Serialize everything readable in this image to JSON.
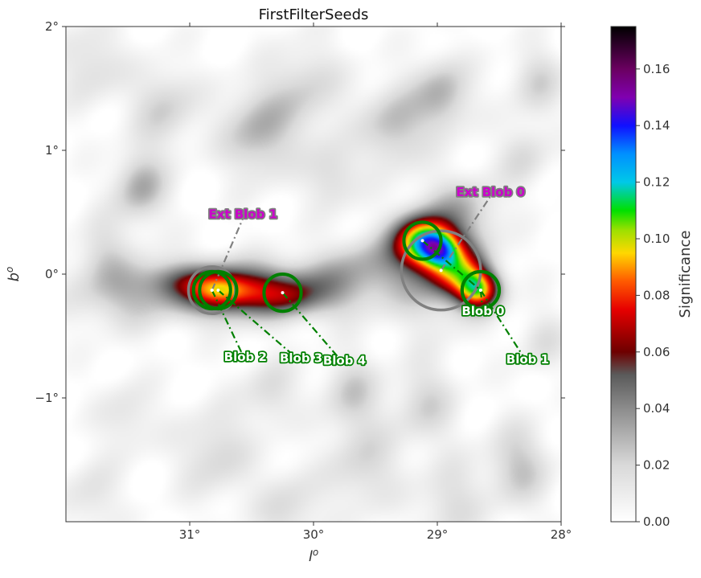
{
  "chart_data": {
    "type": "heatmap",
    "title": "FirstFilterSeeds",
    "xlabel": "l",
    "xlabel_superscript": "o",
    "ylabel": "b",
    "ylabel_superscript": "o",
    "xlim": [
      32.0,
      28.0
    ],
    "ylim": [
      -2.0,
      2.0
    ],
    "x_ticks": [
      {
        "value": 31,
        "label": "31°"
      },
      {
        "value": 30,
        "label": "30°"
      },
      {
        "value": 29,
        "label": "29°"
      },
      {
        "value": 28,
        "label": "28°"
      }
    ],
    "y_ticks": [
      {
        "value": 2,
        "label": "2°"
      },
      {
        "value": 1,
        "label": "1°"
      },
      {
        "value": 0,
        "label": "0°"
      },
      {
        "value": -1,
        "label": "−1°"
      }
    ],
    "colorbar": {
      "label": "Significance",
      "range": [
        0.0,
        0.175
      ],
      "ticks": [
        {
          "value": 0.0,
          "label": "0.00"
        },
        {
          "value": 0.02,
          "label": "0.02"
        },
        {
          "value": 0.04,
          "label": "0.04"
        },
        {
          "value": 0.06,
          "label": "0.06"
        },
        {
          "value": 0.08,
          "label": "0.08"
        },
        {
          "value": 0.1,
          "label": "0.10"
        },
        {
          "value": 0.12,
          "label": "0.12"
        },
        {
          "value": 0.14,
          "label": "0.14"
        },
        {
          "value": 0.16,
          "label": "0.16"
        }
      ],
      "stops": [
        {
          "value": 0.0,
          "color": "#ffffff"
        },
        {
          "value": 0.02,
          "color": "#d9d9d9"
        },
        {
          "value": 0.04,
          "color": "#8c8c8c"
        },
        {
          "value": 0.052,
          "color": "#5a5a5a"
        },
        {
          "value": 0.06,
          "color": "#6e0000"
        },
        {
          "value": 0.075,
          "color": "#e60000"
        },
        {
          "value": 0.085,
          "color": "#ff5a00"
        },
        {
          "value": 0.095,
          "color": "#ffd800"
        },
        {
          "value": 0.103,
          "color": "#9de000"
        },
        {
          "value": 0.11,
          "color": "#00e000"
        },
        {
          "value": 0.12,
          "color": "#00c8e8"
        },
        {
          "value": 0.13,
          "color": "#0090ff"
        },
        {
          "value": 0.14,
          "color": "#1010ff"
        },
        {
          "value": 0.15,
          "color": "#8000b0"
        },
        {
          "value": 0.16,
          "color": "#6a0060"
        },
        {
          "value": 0.175,
          "color": "#000000"
        }
      ]
    },
    "emission": [
      {
        "l": 30.8,
        "b": -0.13,
        "sl": 0.3,
        "sb": 0.16,
        "amp": 0.05
      },
      {
        "l": 30.75,
        "b": -0.13,
        "sl": 0.15,
        "sb": 0.1,
        "amp": 0.03
      },
      {
        "l": 31.1,
        "b": -0.05,
        "sl": 0.2,
        "sb": 0.1,
        "amp": 0.02
      },
      {
        "l": 30.45,
        "b": -0.15,
        "sl": 0.22,
        "sb": 0.13,
        "amp": 0.03
      },
      {
        "l": 30.0,
        "b": -0.12,
        "sl": 0.35,
        "sb": 0.16,
        "amp": 0.038
      },
      {
        "l": 30.15,
        "b": -0.2,
        "sl": 0.15,
        "sb": 0.1,
        "amp": 0.015
      },
      {
        "l": 31.55,
        "b": -0.15,
        "sl": 0.3,
        "sb": 0.2,
        "amp": 0.025
      },
      {
        "l": 29.12,
        "b": 0.27,
        "sl": 0.16,
        "sb": 0.14,
        "amp": 0.09
      },
      {
        "l": 28.98,
        "b": 0.2,
        "sl": 0.12,
        "sb": 0.1,
        "amp": 0.05
      },
      {
        "l": 28.66,
        "b": -0.13,
        "sl": 0.12,
        "sb": 0.11,
        "amp": 0.08
      },
      {
        "l": 28.83,
        "b": 0.02,
        "sl": 0.16,
        "sb": 0.14,
        "amp": 0.06
      },
      {
        "l": 29.02,
        "b": 0.03,
        "sl": 0.28,
        "sb": 0.3,
        "amp": 0.03
      },
      {
        "l": 28.8,
        "b": 0.5,
        "sl": 0.2,
        "sb": 0.2,
        "amp": 0.025
      },
      {
        "l": 29.55,
        "b": 0.1,
        "sl": 0.25,
        "sb": 0.15,
        "amp": 0.02
      }
    ],
    "background_clouds": [
      {
        "l": 30.45,
        "b": 1.15,
        "r": 0.2,
        "amp": 0.03
      },
      {
        "l": 29.35,
        "b": 1.2,
        "r": 0.18,
        "amp": 0.028
      },
      {
        "l": 28.95,
        "b": 1.45,
        "r": 0.16,
        "amp": 0.03
      },
      {
        "l": 31.4,
        "b": 0.7,
        "r": 0.15,
        "amp": 0.032
      },
      {
        "l": 31.2,
        "b": 1.35,
        "r": 0.18,
        "amp": 0.022
      },
      {
        "l": 30.05,
        "b": 1.5,
        "r": 0.2,
        "amp": 0.02
      },
      {
        "l": 28.2,
        "b": 1.55,
        "r": 0.15,
        "amp": 0.02
      },
      {
        "l": 31.8,
        "b": 1.7,
        "r": 0.18,
        "amp": 0.018
      },
      {
        "l": 29.85,
        "b": 0.8,
        "r": 0.15,
        "amp": 0.02
      },
      {
        "l": 28.3,
        "b": 0.95,
        "r": 0.14,
        "amp": 0.018
      },
      {
        "l": 31.7,
        "b": 0.2,
        "r": 0.15,
        "amp": 0.015
      },
      {
        "l": 30.35,
        "b": -0.95,
        "r": 0.15,
        "amp": 0.018
      },
      {
        "l": 29.7,
        "b": -0.95,
        "r": 0.16,
        "amp": 0.022
      },
      {
        "l": 29.1,
        "b": -1.05,
        "r": 0.18,
        "amp": 0.02
      },
      {
        "l": 28.35,
        "b": -1.55,
        "r": 0.18,
        "amp": 0.025
      },
      {
        "l": 29.6,
        "b": -1.55,
        "r": 0.2,
        "amp": 0.02
      },
      {
        "l": 30.8,
        "b": -1.45,
        "r": 0.2,
        "amp": 0.02
      },
      {
        "l": 31.5,
        "b": -1.15,
        "r": 0.16,
        "amp": 0.015
      },
      {
        "l": 30.2,
        "b": -1.9,
        "r": 0.18,
        "amp": 0.018
      },
      {
        "l": 28.9,
        "b": -1.85,
        "r": 0.18,
        "amp": 0.018
      },
      {
        "l": 31.8,
        "b": -1.8,
        "r": 0.16,
        "amp": 0.015
      },
      {
        "l": 28.15,
        "b": -0.55,
        "r": 0.14,
        "amp": 0.015
      }
    ],
    "seeds": [
      {
        "label": "Blob 0",
        "color": "#008000",
        "label_color": "#ffffff",
        "line_style": "dashdot",
        "l": 28.65,
        "b": -0.13,
        "r": 0.15,
        "label_l": 28.63,
        "label_b": -0.33
      },
      {
        "label": "Blob 1",
        "color": "#008000",
        "label_color": "#ffffff",
        "line_style": "dashdot",
        "l": 28.65,
        "b": -0.13,
        "r": 0.15,
        "label_l": 28.27,
        "label_b": -0.72
      },
      {
        "label": "Blob 2",
        "color": "#008000",
        "label_color": "#ffffff",
        "line_style": "dashdot",
        "l": 30.82,
        "b": -0.13,
        "r": 0.15,
        "label_l": 30.55,
        "label_b": -0.7
      },
      {
        "label": "Blob 3",
        "color": "#008000",
        "label_color": "#ffffff",
        "line_style": "dashdot",
        "l": 30.77,
        "b": -0.13,
        "r": 0.15,
        "label_l": 30.1,
        "label_b": -0.71
      },
      {
        "label": "Blob 4",
        "color": "#008000",
        "label_color": "#ffffff",
        "line_style": "dashdot",
        "l": 30.25,
        "b": -0.15,
        "r": 0.15,
        "label_l": 29.75,
        "label_b": -0.73
      },
      {
        "label": "",
        "color": "#008000",
        "label_color": "#ffffff",
        "line_style": "dashdot",
        "l": 29.12,
        "b": 0.27,
        "r": 0.15,
        "label_l": 28.65,
        "label_b": -0.13
      }
    ],
    "ext_seeds": [
      {
        "label": "Ext Blob 0",
        "color": "#808080",
        "label_color": "#cc00cc",
        "line_style": "dashdot",
        "l": 28.97,
        "b": 0.03,
        "r": 0.32,
        "label_l": 28.57,
        "label_b": 0.63
      },
      {
        "label": "Ext Blob 1",
        "color": "#808080",
        "label_color": "#cc00cc",
        "line_style": "dashdot",
        "l": 30.82,
        "b": -0.13,
        "r": 0.19,
        "label_l": 30.57,
        "label_b": 0.45
      }
    ]
  }
}
